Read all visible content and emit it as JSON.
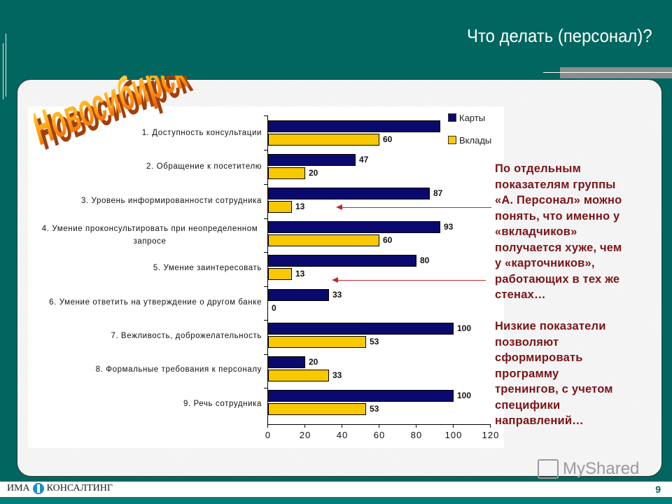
{
  "slide": {
    "title": "Что делать (персонал)?",
    "city_wordart": "Новосибирск",
    "page_number": "9",
    "footer_logo_left": "ИМА",
    "footer_logo_right": "КОНСАЛТИНГ",
    "watermark": "MyShared"
  },
  "colors": {
    "background": "#00665f",
    "series_cards": "#0a0a6e",
    "series_deposits": "#f8c800",
    "note_text": "#7a1418",
    "arrow": "#c0282c"
  },
  "legend": {
    "items": [
      {
        "label": "Карты",
        "color": "#0a0a6e"
      },
      {
        "label": "Вклады",
        "color": "#f8c800"
      }
    ]
  },
  "notes": {
    "paragraph1": [
      "По отдельным",
      "показателям группы",
      "«А. Персонал» можно",
      "понять, что именно у",
      "«вкладчиков»",
      "получается хуже, чем",
      "у «карточников»,",
      "работающих в тех же",
      "стенах…"
    ],
    "paragraph2": [
      "Низкие показатели",
      "позволяют",
      "сформировать",
      "программу",
      "тренингов, с учетом",
      "специфики",
      "направлений…"
    ]
  },
  "chart_data": {
    "type": "bar",
    "orientation": "horizontal",
    "title": "",
    "xlabel": "",
    "ylabel": "",
    "xlim": [
      0,
      120
    ],
    "x_ticks": [
      0,
      20,
      40,
      60,
      80,
      100,
      120
    ],
    "grid": false,
    "legend_position": "top-right",
    "categories": [
      "1. Доступность консультации",
      "2. Обращение к посетителю",
      "3. Уровень информированности сотрудника",
      "4. Умение проконсультировать при неопределенном запросе",
      "5. Умение заинтересовать",
      "6. Умение ответить на утверждение о другом банке",
      "7. Вежливость, доброжелательность",
      "8. Формальные требования к персоналу",
      "9. Речь сотрудника"
    ],
    "series": [
      {
        "name": "Карты",
        "values": [
          93,
          47,
          87,
          93,
          80,
          33,
          100,
          20,
          100
        ],
        "labels": [
          "",
          "47",
          "87",
          "93",
          "80",
          "33",
          "100",
          "20",
          "100"
        ]
      },
      {
        "name": "Вклады",
        "values": [
          60,
          20,
          13,
          60,
          13,
          0,
          53,
          33,
          53
        ],
        "labels": [
          "60",
          "20",
          "13",
          "60",
          "13",
          "0",
          "53",
          "33",
          "53"
        ]
      }
    ],
    "annotations": [
      "arrow pointing to item 3 Вклады (13)",
      "arrow pointing to item 5 Вклады (13)"
    ]
  }
}
